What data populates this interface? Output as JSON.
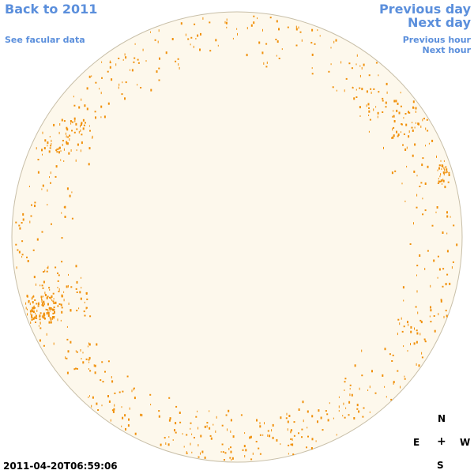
{
  "nav": {
    "back_label": "Back to 2011",
    "facular_label": "See facular data",
    "prev_day_label": "Previous day",
    "next_day_label": "Next day",
    "prev_hour_label": "Previous hour",
    "next_hour_label": "Next hour"
  },
  "compass": {
    "north": "N",
    "east": "E",
    "center": "+",
    "west": "W",
    "south": "S"
  },
  "timestamp": "2011-04-20T06:59:06",
  "colors": {
    "link": "#5b8fdc",
    "disk_fill": "#fdf8ec",
    "disk_border": "#c8bfa8",
    "facula": "#f0900a"
  }
}
